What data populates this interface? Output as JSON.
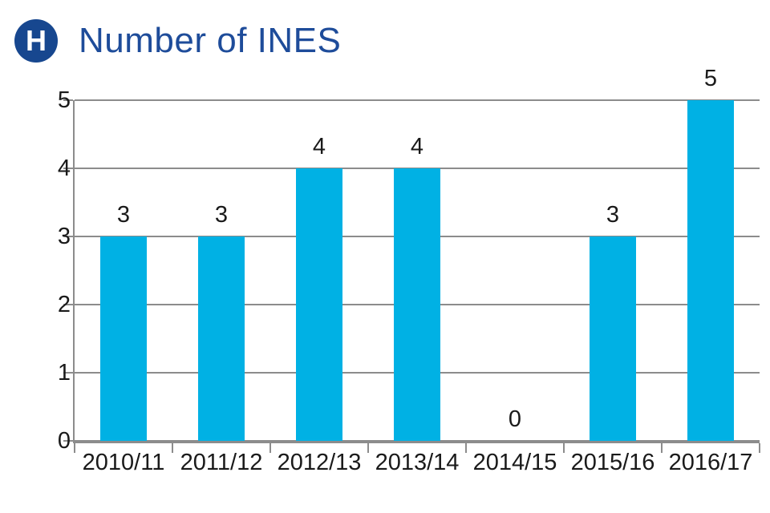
{
  "header": {
    "badge_letter": "H",
    "title": "Number of INES"
  },
  "chart_data": {
    "type": "bar",
    "title": "Number of INES",
    "categories": [
      "2010/11",
      "2011/12",
      "2012/13",
      "2013/14",
      "2014/15",
      "2015/16",
      "2016/17"
    ],
    "values": [
      3,
      3,
      4,
      4,
      0,
      3,
      5
    ],
    "xlabel": "",
    "ylabel": "",
    "ylim": [
      0,
      5
    ],
    "yticks": [
      0,
      1,
      2,
      3,
      4,
      5
    ],
    "grid": "horizontal",
    "legend": "none",
    "data_labels": true,
    "bar_color": "#00b1e4",
    "grid_color": "#8c8c8c",
    "label_color": "#1a1a1a",
    "title_color": "#1e4c9a",
    "badge_color": "#17478f"
  }
}
